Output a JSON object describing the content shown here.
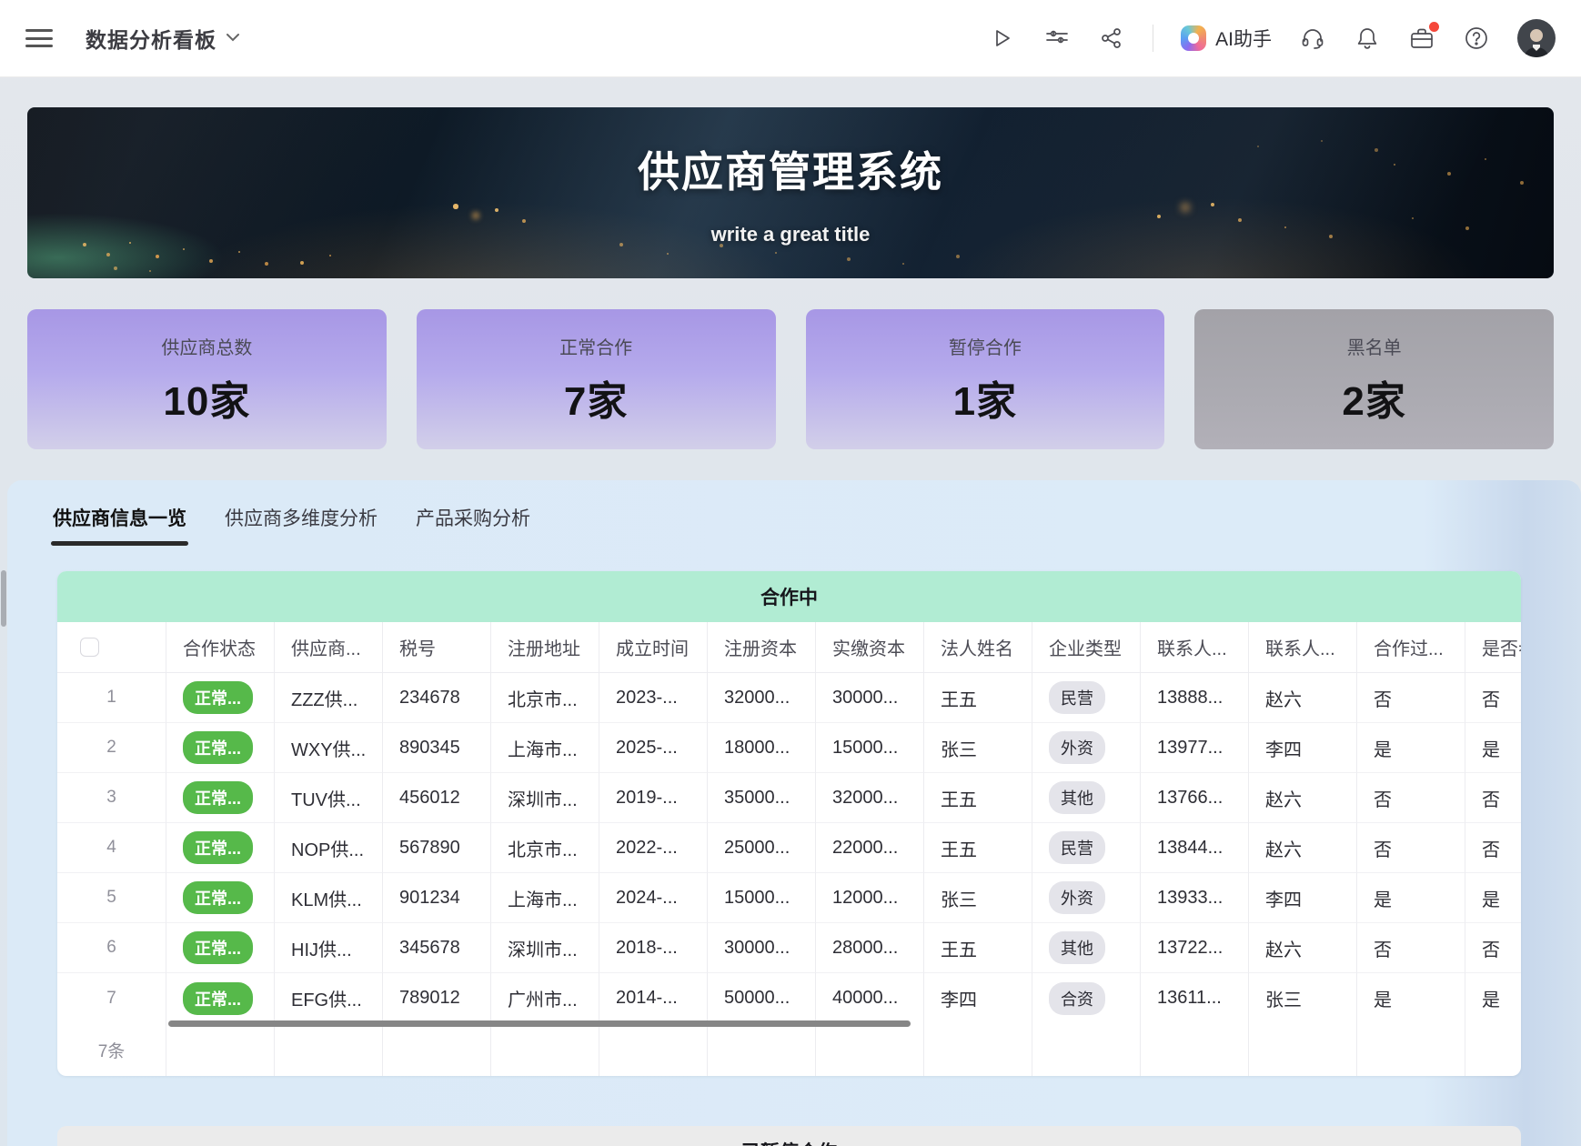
{
  "topbar": {
    "title": "数据分析看板",
    "ai_label": "AI助手"
  },
  "hero": {
    "title": "供应商管理系统",
    "subtitle": "write a great title"
  },
  "stats": [
    {
      "label": "供应商总数",
      "value": "10家",
      "variant": "purple"
    },
    {
      "label": "正常合作",
      "value": "7家",
      "variant": "purple"
    },
    {
      "label": "暂停合作",
      "value": "1家",
      "variant": "purple"
    },
    {
      "label": "黑名单",
      "value": "2家",
      "variant": "gray"
    }
  ],
  "tabs": [
    {
      "label": "供应商信息一览",
      "active": true
    },
    {
      "label": "供应商多维度分析",
      "active": false
    },
    {
      "label": "产品采购分析",
      "active": false
    }
  ],
  "table_cooperating": {
    "banner": "合作中",
    "columns": [
      "",
      "合作状态",
      "供应商...",
      "税号",
      "注册地址",
      "成立时间",
      "注册资本",
      "实缴资本",
      "法人姓名",
      "企业类型",
      "联系人...",
      "联系人...",
      "合作过...",
      "是否参"
    ],
    "rows": [
      {
        "cells": [
          "1",
          "正常...",
          "ZZZ供...",
          "234678",
          "北京市...",
          "2023-...",
          "32000...",
          "30000...",
          "王五",
          "民营",
          "13888...",
          "赵六",
          "否",
          "否"
        ]
      },
      {
        "cells": [
          "2",
          "正常...",
          "WXY供...",
          "890345",
          "上海市...",
          "2025-...",
          "18000...",
          "15000...",
          "张三",
          "外资",
          "13977...",
          "李四",
          "是",
          "是"
        ]
      },
      {
        "cells": [
          "3",
          "正常...",
          "TUV供...",
          "456012",
          "深圳市...",
          "2019-...",
          "35000...",
          "32000...",
          "王五",
          "其他",
          "13766...",
          "赵六",
          "否",
          "否"
        ]
      },
      {
        "cells": [
          "4",
          "正常...",
          "NOP供...",
          "567890",
          "北京市...",
          "2022-...",
          "25000...",
          "22000...",
          "王五",
          "民营",
          "13844...",
          "赵六",
          "否",
          "否"
        ]
      },
      {
        "cells": [
          "5",
          "正常...",
          "KLM供...",
          "901234",
          "上海市...",
          "2024-...",
          "15000...",
          "12000...",
          "张三",
          "外资",
          "13933...",
          "李四",
          "是",
          "是"
        ]
      },
      {
        "cells": [
          "6",
          "正常...",
          "HIJ供...",
          "345678",
          "深圳市...",
          "2018-...",
          "30000...",
          "28000...",
          "王五",
          "其他",
          "13722...",
          "赵六",
          "否",
          "否"
        ]
      },
      {
        "cells": [
          "7",
          "正常...",
          "EFG供...",
          "789012",
          "广州市...",
          "2014-...",
          "50000...",
          "40000...",
          "李四",
          "合资",
          "13611...",
          "张三",
          "是",
          "是"
        ]
      }
    ],
    "footer_count": "7条"
  },
  "table_paused": {
    "banner": "已暂停合作"
  },
  "colors": {
    "banner_green": "#b1ecd3",
    "banner_gray": "#ebebeb",
    "status_pill_green": "#56b94a",
    "type_pill_gray": "#e4e4ea",
    "card_purple_top": "#a797e5",
    "card_gray": "#a8a7ad",
    "panel_blue": "#dbeaf7",
    "badge_red": "#f5473a"
  }
}
